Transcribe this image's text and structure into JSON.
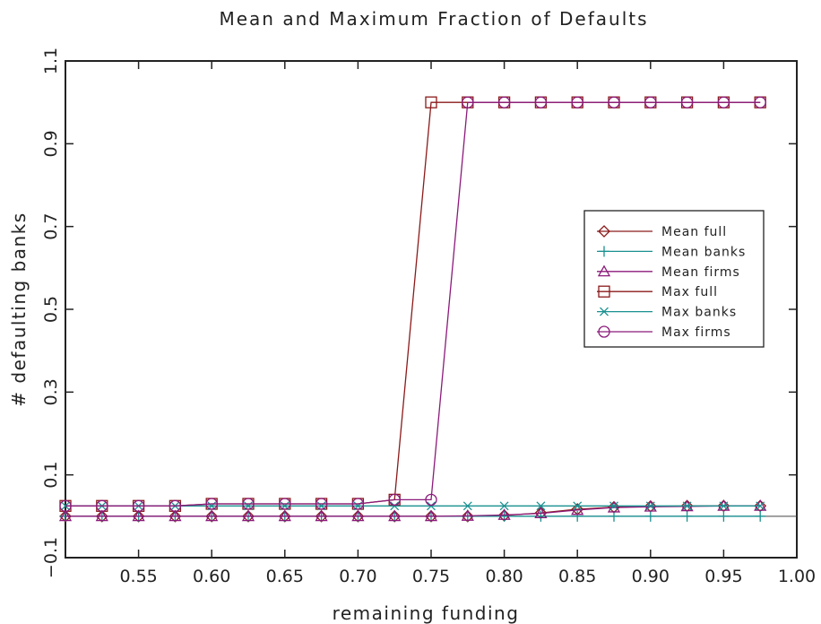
{
  "chart_data": {
    "type": "line",
    "title": "Mean and Maximum Fraction of Defaults",
    "xlabel": "remaining funding",
    "ylabel": "# defaulting banks",
    "xlim": [
      0.5,
      1.0
    ],
    "ylim": [
      -0.1,
      1.1
    ],
    "xticks": [
      "0.55",
      "0.60",
      "0.65",
      "0.70",
      "0.75",
      "0.80",
      "0.85",
      "0.90",
      "0.95",
      "1.00"
    ],
    "yticks": [
      "−0.1",
      "0.1",
      "0.3",
      "0.5",
      "0.7",
      "0.9",
      "1.1"
    ],
    "ytick_values": [
      -0.1,
      0.1,
      0.3,
      0.5,
      0.7,
      0.9,
      1.1
    ],
    "reference_line_y": 0.0,
    "legend_position": "right",
    "x": [
      0.5,
      0.525,
      0.55,
      0.575,
      0.6,
      0.625,
      0.65,
      0.675,
      0.7,
      0.725,
      0.75,
      0.775,
      0.8,
      0.825,
      0.85,
      0.875,
      0.9,
      0.925,
      0.95,
      0.975
    ],
    "series": [
      {
        "name": "Mean full",
        "marker": "diamond",
        "color": "#8b1a1a",
        "values": [
          0,
          0,
          0,
          0,
          0,
          0,
          0,
          0,
          0,
          0,
          0,
          0,
          0.002,
          0.008,
          0.017,
          0.022,
          0.024,
          0.025,
          0.025,
          0.025
        ]
      },
      {
        "name": "Mean banks",
        "marker": "plus",
        "color": "#1a9090",
        "values": [
          0,
          0,
          0,
          0,
          0,
          0,
          0,
          0,
          0,
          0,
          0,
          0,
          0,
          0,
          0,
          0,
          0,
          0,
          0,
          0
        ]
      },
      {
        "name": "Mean firms",
        "marker": "triangle",
        "color": "#8b1a7a",
        "values": [
          0,
          0,
          0,
          0,
          0,
          0,
          0,
          0,
          0,
          0,
          0,
          0.001,
          0.003,
          0.007,
          0.015,
          0.021,
          0.023,
          0.024,
          0.025,
          0.025
        ]
      },
      {
        "name": "Max full",
        "marker": "square",
        "color": "#8b1a1a",
        "values": [
          0.025,
          0.025,
          0.025,
          0.025,
          0.03,
          0.03,
          0.03,
          0.03,
          0.03,
          0.04,
          1,
          1,
          1,
          1,
          1,
          1,
          1,
          1,
          1,
          1
        ]
      },
      {
        "name": "Max banks",
        "marker": "x",
        "color": "#1a9090",
        "values": [
          0.025,
          0.025,
          0.025,
          0.025,
          0.025,
          0.025,
          0.025,
          0.025,
          0.025,
          0.025,
          0.025,
          0.025,
          0.025,
          0.025,
          0.025,
          0.025,
          0.025,
          0.025,
          0.025,
          0.025
        ]
      },
      {
        "name": "Max firms",
        "marker": "circle",
        "color": "#8b1a7a",
        "values": [
          0.025,
          0.025,
          0.025,
          0.025,
          0.03,
          0.03,
          0.03,
          0.03,
          0.03,
          0.04,
          0.04,
          1,
          1,
          1,
          1,
          1,
          1,
          1,
          1,
          1
        ]
      }
    ]
  }
}
